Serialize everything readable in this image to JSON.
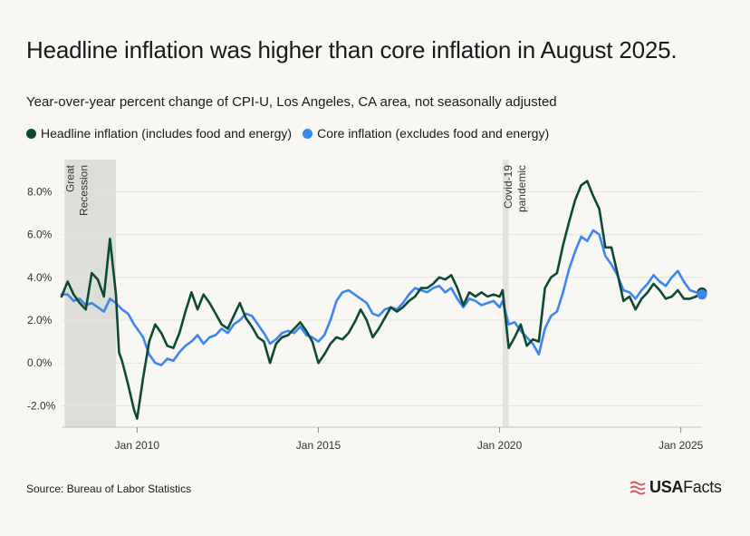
{
  "title": "Headline inflation was higher than core inflation in August 2025.",
  "subtitle": "Year-over-year percent change of CPI-U, Los Angeles, CA area, not seasonally adjusted",
  "source": "Source: Bureau of Labor Statistics",
  "brand": {
    "usa": "USA",
    "facts": "Facts",
    "icon": "flag-icon"
  },
  "colors": {
    "headline": "#0d4a35",
    "core": "#3c86f0",
    "band": "#d9d9d4",
    "grid": "#e4e3de",
    "brand_accent": "#d9546b"
  },
  "chart_data": {
    "type": "line",
    "title": "Headline inflation was higher than core inflation in August 2025.",
    "subtitle": "Year-over-year percent change of CPI-U, Los Angeles, CA area, not seasonally adjusted",
    "xlabel": "",
    "ylabel": "",
    "x_range": [
      "2007-12",
      "2025-08"
    ],
    "ylim": [
      -3.0,
      9.5
    ],
    "y_ticks": [
      8,
      6,
      4,
      2,
      0,
      -2
    ],
    "y_tick_labels": [
      "8.0%",
      "6.0%",
      "4.0%",
      "2.0%",
      "0.0%",
      "-2.0%"
    ],
    "x_ticks": [
      "2010-01",
      "2015-01",
      "2020-01",
      "2025-01"
    ],
    "x_tick_labels": [
      "Jan 2010",
      "Jan 2015",
      "Jan 2020",
      "Jan 2025"
    ],
    "grid": "horizontal",
    "legend_position": "top-left",
    "annotations": [
      {
        "label": "Great Recession",
        "start": "2008-01",
        "end": "2009-06",
        "lines": [
          "Great",
          "Recession"
        ]
      },
      {
        "label": "Covid-19 pandemic",
        "start": "2020-02",
        "end": "2020-04",
        "lines": [
          "Covid-19",
          "pandemic"
        ]
      }
    ],
    "series": [
      {
        "name": "Headline inflation (includes food and energy)",
        "color": "#0d4a35",
        "points": [
          [
            "2007-12",
            3.1
          ],
          [
            "2008-02",
            3.8
          ],
          [
            "2008-04",
            3.2
          ],
          [
            "2008-06",
            2.8
          ],
          [
            "2008-08",
            2.5
          ],
          [
            "2008-10",
            4.2
          ],
          [
            "2008-12",
            3.9
          ],
          [
            "2009-02",
            3.1
          ],
          [
            "2009-04",
            5.8
          ],
          [
            "2009-06",
            3.2
          ],
          [
            "2009-07",
            0.5
          ],
          [
            "2009-08",
            0.1
          ],
          [
            "2009-10",
            -1.0
          ],
          [
            "2009-12",
            -2.2
          ],
          [
            "2010-01",
            -2.6
          ],
          [
            "2010-03",
            -0.7
          ],
          [
            "2010-05",
            1.0
          ],
          [
            "2010-07",
            1.8
          ],
          [
            "2010-09",
            1.4
          ],
          [
            "2010-11",
            0.8
          ],
          [
            "2011-01",
            0.7
          ],
          [
            "2011-03",
            1.4
          ],
          [
            "2011-05",
            2.4
          ],
          [
            "2011-07",
            3.3
          ],
          [
            "2011-09",
            2.5
          ],
          [
            "2011-11",
            3.2
          ],
          [
            "2012-01",
            2.8
          ],
          [
            "2012-03",
            2.3
          ],
          [
            "2012-05",
            1.8
          ],
          [
            "2012-07",
            1.6
          ],
          [
            "2012-09",
            2.2
          ],
          [
            "2012-11",
            2.8
          ],
          [
            "2013-01",
            2.1
          ],
          [
            "2013-03",
            1.7
          ],
          [
            "2013-05",
            1.2
          ],
          [
            "2013-07",
            1.0
          ],
          [
            "2013-09",
            0.0
          ],
          [
            "2013-11",
            0.9
          ],
          [
            "2014-01",
            1.2
          ],
          [
            "2014-03",
            1.3
          ],
          [
            "2014-05",
            1.6
          ],
          [
            "2014-07",
            1.9
          ],
          [
            "2014-09",
            1.5
          ],
          [
            "2014-11",
            1.0
          ],
          [
            "2015-01",
            0.0
          ],
          [
            "2015-03",
            0.4
          ],
          [
            "2015-05",
            0.9
          ],
          [
            "2015-07",
            1.2
          ],
          [
            "2015-09",
            1.1
          ],
          [
            "2015-11",
            1.4
          ],
          [
            "2016-01",
            1.9
          ],
          [
            "2016-03",
            2.5
          ],
          [
            "2016-05",
            2.0
          ],
          [
            "2016-07",
            1.2
          ],
          [
            "2016-09",
            1.6
          ],
          [
            "2016-11",
            2.1
          ],
          [
            "2017-01",
            2.6
          ],
          [
            "2017-03",
            2.4
          ],
          [
            "2017-05",
            2.6
          ],
          [
            "2017-07",
            2.9
          ],
          [
            "2017-09",
            3.1
          ],
          [
            "2017-11",
            3.5
          ],
          [
            "2018-01",
            3.5
          ],
          [
            "2018-03",
            3.7
          ],
          [
            "2018-05",
            4.0
          ],
          [
            "2018-07",
            3.9
          ],
          [
            "2018-09",
            4.1
          ],
          [
            "2018-11",
            3.5
          ],
          [
            "2019-01",
            2.7
          ],
          [
            "2019-03",
            3.3
          ],
          [
            "2019-05",
            3.1
          ],
          [
            "2019-07",
            3.3
          ],
          [
            "2019-09",
            3.1
          ],
          [
            "2019-11",
            3.2
          ],
          [
            "2020-01",
            3.1
          ],
          [
            "2020-02",
            3.4
          ],
          [
            "2020-04",
            0.7
          ],
          [
            "2020-06",
            1.2
          ],
          [
            "2020-08",
            1.8
          ],
          [
            "2020-10",
            0.8
          ],
          [
            "2020-12",
            1.1
          ],
          [
            "2021-02",
            1.0
          ],
          [
            "2021-04",
            3.5
          ],
          [
            "2021-06",
            4.0
          ],
          [
            "2021-08",
            4.2
          ],
          [
            "2021-10",
            5.5
          ],
          [
            "2021-12",
            6.6
          ],
          [
            "2022-02",
            7.6
          ],
          [
            "2022-04",
            8.3
          ],
          [
            "2022-06",
            8.5
          ],
          [
            "2022-08",
            7.8
          ],
          [
            "2022-10",
            7.2
          ],
          [
            "2022-12",
            5.4
          ],
          [
            "2023-02",
            5.4
          ],
          [
            "2023-04",
            4.2
          ],
          [
            "2023-06",
            2.9
          ],
          [
            "2023-08",
            3.1
          ],
          [
            "2023-10",
            2.5
          ],
          [
            "2023-12",
            3.0
          ],
          [
            "2024-02",
            3.3
          ],
          [
            "2024-04",
            3.7
          ],
          [
            "2024-06",
            3.4
          ],
          [
            "2024-08",
            3.0
          ],
          [
            "2024-10",
            3.1
          ],
          [
            "2024-12",
            3.4
          ],
          [
            "2025-02",
            3.0
          ],
          [
            "2025-04",
            3.0
          ],
          [
            "2025-06",
            3.1
          ],
          [
            "2025-08",
            3.3
          ]
        ]
      },
      {
        "name": "Core inflation (excludes food and energy)",
        "color": "#3c86f0",
        "points": [
          [
            "2007-12",
            3.2
          ],
          [
            "2008-02",
            3.2
          ],
          [
            "2008-04",
            2.9
          ],
          [
            "2008-06",
            3.0
          ],
          [
            "2008-08",
            2.7
          ],
          [
            "2008-10",
            2.8
          ],
          [
            "2008-12",
            2.6
          ],
          [
            "2009-02",
            2.4
          ],
          [
            "2009-04",
            3.0
          ],
          [
            "2009-06",
            2.8
          ],
          [
            "2009-08",
            2.5
          ],
          [
            "2009-10",
            2.3
          ],
          [
            "2009-12",
            1.8
          ],
          [
            "2010-01",
            1.6
          ],
          [
            "2010-03",
            1.2
          ],
          [
            "2010-05",
            0.4
          ],
          [
            "2010-07",
            0.0
          ],
          [
            "2010-09",
            -0.1
          ],
          [
            "2010-11",
            0.2
          ],
          [
            "2011-01",
            0.1
          ],
          [
            "2011-03",
            0.5
          ],
          [
            "2011-05",
            0.8
          ],
          [
            "2011-07",
            1.0
          ],
          [
            "2011-09",
            1.3
          ],
          [
            "2011-11",
            0.9
          ],
          [
            "2012-01",
            1.2
          ],
          [
            "2012-03",
            1.3
          ],
          [
            "2012-05",
            1.6
          ],
          [
            "2012-07",
            1.4
          ],
          [
            "2012-09",
            1.8
          ],
          [
            "2012-11",
            2.0
          ],
          [
            "2013-01",
            2.3
          ],
          [
            "2013-03",
            2.2
          ],
          [
            "2013-05",
            1.8
          ],
          [
            "2013-07",
            1.4
          ],
          [
            "2013-09",
            0.9
          ],
          [
            "2013-11",
            1.1
          ],
          [
            "2014-01",
            1.4
          ],
          [
            "2014-03",
            1.5
          ],
          [
            "2014-05",
            1.4
          ],
          [
            "2014-07",
            1.7
          ],
          [
            "2014-09",
            1.3
          ],
          [
            "2014-11",
            1.2
          ],
          [
            "2015-01",
            1.0
          ],
          [
            "2015-03",
            1.3
          ],
          [
            "2015-05",
            2.0
          ],
          [
            "2015-07",
            2.9
          ],
          [
            "2015-09",
            3.3
          ],
          [
            "2015-11",
            3.4
          ],
          [
            "2016-01",
            3.2
          ],
          [
            "2016-03",
            3.0
          ],
          [
            "2016-05",
            2.8
          ],
          [
            "2016-07",
            2.3
          ],
          [
            "2016-09",
            2.2
          ],
          [
            "2016-11",
            2.5
          ],
          [
            "2017-01",
            2.6
          ],
          [
            "2017-03",
            2.5
          ],
          [
            "2017-05",
            2.8
          ],
          [
            "2017-07",
            3.2
          ],
          [
            "2017-09",
            3.5
          ],
          [
            "2017-11",
            3.4
          ],
          [
            "2018-01",
            3.3
          ],
          [
            "2018-03",
            3.5
          ],
          [
            "2018-05",
            3.6
          ],
          [
            "2018-07",
            3.3
          ],
          [
            "2018-09",
            3.5
          ],
          [
            "2018-11",
            3.0
          ],
          [
            "2019-01",
            2.6
          ],
          [
            "2019-03",
            3.0
          ],
          [
            "2019-05",
            2.9
          ],
          [
            "2019-07",
            2.7
          ],
          [
            "2019-09",
            2.8
          ],
          [
            "2019-11",
            2.9
          ],
          [
            "2020-01",
            2.6
          ],
          [
            "2020-02",
            2.9
          ],
          [
            "2020-04",
            1.8
          ],
          [
            "2020-06",
            1.9
          ],
          [
            "2020-08",
            1.5
          ],
          [
            "2020-10",
            1.2
          ],
          [
            "2020-12",
            0.9
          ],
          [
            "2021-02",
            0.4
          ],
          [
            "2021-04",
            1.6
          ],
          [
            "2021-06",
            2.2
          ],
          [
            "2021-08",
            2.4
          ],
          [
            "2021-10",
            3.3
          ],
          [
            "2021-12",
            4.4
          ],
          [
            "2022-02",
            5.2
          ],
          [
            "2022-04",
            5.9
          ],
          [
            "2022-06",
            5.7
          ],
          [
            "2022-08",
            6.2
          ],
          [
            "2022-10",
            6.0
          ],
          [
            "2022-12",
            5.0
          ],
          [
            "2023-02",
            4.6
          ],
          [
            "2023-04",
            4.1
          ],
          [
            "2023-06",
            3.4
          ],
          [
            "2023-08",
            3.3
          ],
          [
            "2023-10",
            3.0
          ],
          [
            "2023-12",
            3.4
          ],
          [
            "2024-02",
            3.7
          ],
          [
            "2024-04",
            4.1
          ],
          [
            "2024-06",
            3.8
          ],
          [
            "2024-08",
            3.6
          ],
          [
            "2024-10",
            4.0
          ],
          [
            "2024-12",
            4.3
          ],
          [
            "2025-02",
            3.8
          ],
          [
            "2025-04",
            3.4
          ],
          [
            "2025-06",
            3.3
          ],
          [
            "2025-08",
            3.2
          ]
        ]
      }
    ]
  }
}
